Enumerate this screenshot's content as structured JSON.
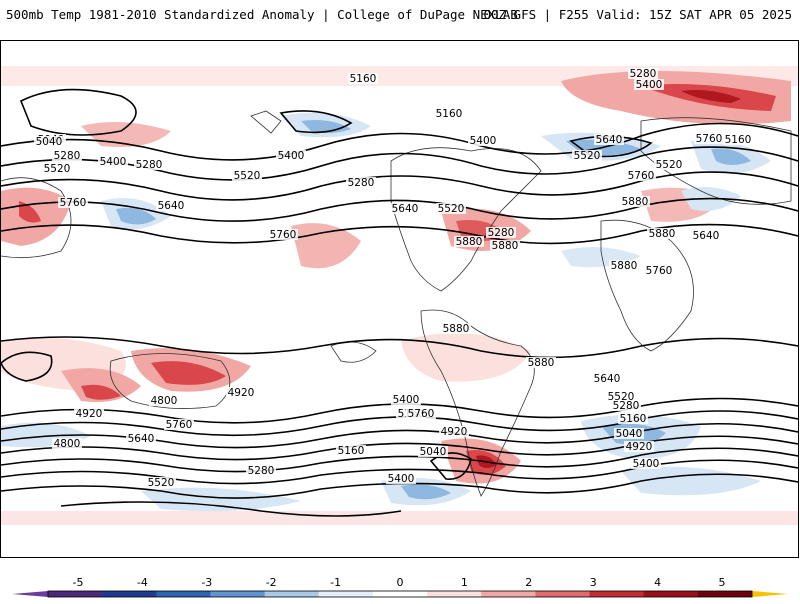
{
  "header": {
    "left": "500mb Temp 1981-2010 Standardized Anomaly | College of DuPage NEXLAB",
    "right": "00Z GFS | F255 Valid: 15Z SAT APR 05 2025"
  },
  "colorbar": {
    "ticks": [
      "-5",
      "-4",
      "-3",
      "-2",
      "-1",
      "0",
      "1",
      "2",
      "3",
      "4",
      "5"
    ],
    "colors": [
      "#6a3d9a",
      "#1f3a93",
      "#3a78c2",
      "#8fb8e0",
      "#d6e6f5",
      "#ffffff",
      "#fbe0de",
      "#f1a8a4",
      "#d9474a",
      "#b0171f",
      "#7a0010",
      "#f5c400"
    ],
    "neg_end_color": "#6a3d9a",
    "pos_end_color": "#f5c400"
  },
  "contour_labels": [
    {
      "text": "5160"
    },
    {
      "text": "5280"
    },
    {
      "text": "5400"
    },
    {
      "text": "5040"
    },
    {
      "text": "5400"
    },
    {
      "text": "5280"
    },
    {
      "text": "5520"
    },
    {
      "text": "5760"
    },
    {
      "text": "5640"
    },
    {
      "text": "5520"
    },
    {
      "text": "5400"
    },
    {
      "text": "5280"
    },
    {
      "text": "5160"
    },
    {
      "text": "5400"
    },
    {
      "text": "5520"
    },
    {
      "text": "5640"
    },
    {
      "text": "5760"
    },
    {
      "text": "5880"
    },
    {
      "text": "5880"
    },
    {
      "text": "5760"
    },
    {
      "text": "5160"
    },
    {
      "text": "5280"
    },
    {
      "text": "5520"
    },
    {
      "text": "5640"
    },
    {
      "text": "5760"
    },
    {
      "text": "5880"
    },
    {
      "text": "5880"
    },
    {
      "text": "5880"
    },
    {
      "text": "5880"
    },
    {
      "text": "5880"
    },
    {
      "text": "5760"
    },
    {
      "text": "5640"
    },
    {
      "text": "5520"
    },
    {
      "text": "5280"
    },
    {
      "text": "5040"
    },
    {
      "text": "4920"
    },
    {
      "text": "4800"
    },
    {
      "text": "5160"
    },
    {
      "text": "5400"
    },
    {
      "text": "5760"
    },
    {
      "text": "5640"
    },
    {
      "text": "5520"
    },
    {
      "text": "5280"
    },
    {
      "text": "5160"
    },
    {
      "text": "5040"
    },
    {
      "text": "4920"
    },
    {
      "text": "5400"
    },
    {
      "text": "4800"
    },
    {
      "text": "4920"
    },
    {
      "text": "5760"
    },
    {
      "text": "5640"
    },
    {
      "text": "5520"
    },
    {
      "text": "5280"
    },
    {
      "text": "5160"
    },
    {
      "text": "5040"
    },
    {
      "text": "4920"
    },
    {
      "text": "5400"
    }
  ],
  "map": {
    "ocean_color": "#ffffff",
    "warm_light": "#fbe0de",
    "warm_mid": "#f1a8a4",
    "warm_strong": "#d9474a",
    "warm_extreme": "#b0171f",
    "cold_light": "#d6e6f5",
    "cold_mid": "#8fb8e0",
    "cold_strong": "#3a78c2",
    "contour_color": "#000000",
    "coast_color": "#333333"
  }
}
